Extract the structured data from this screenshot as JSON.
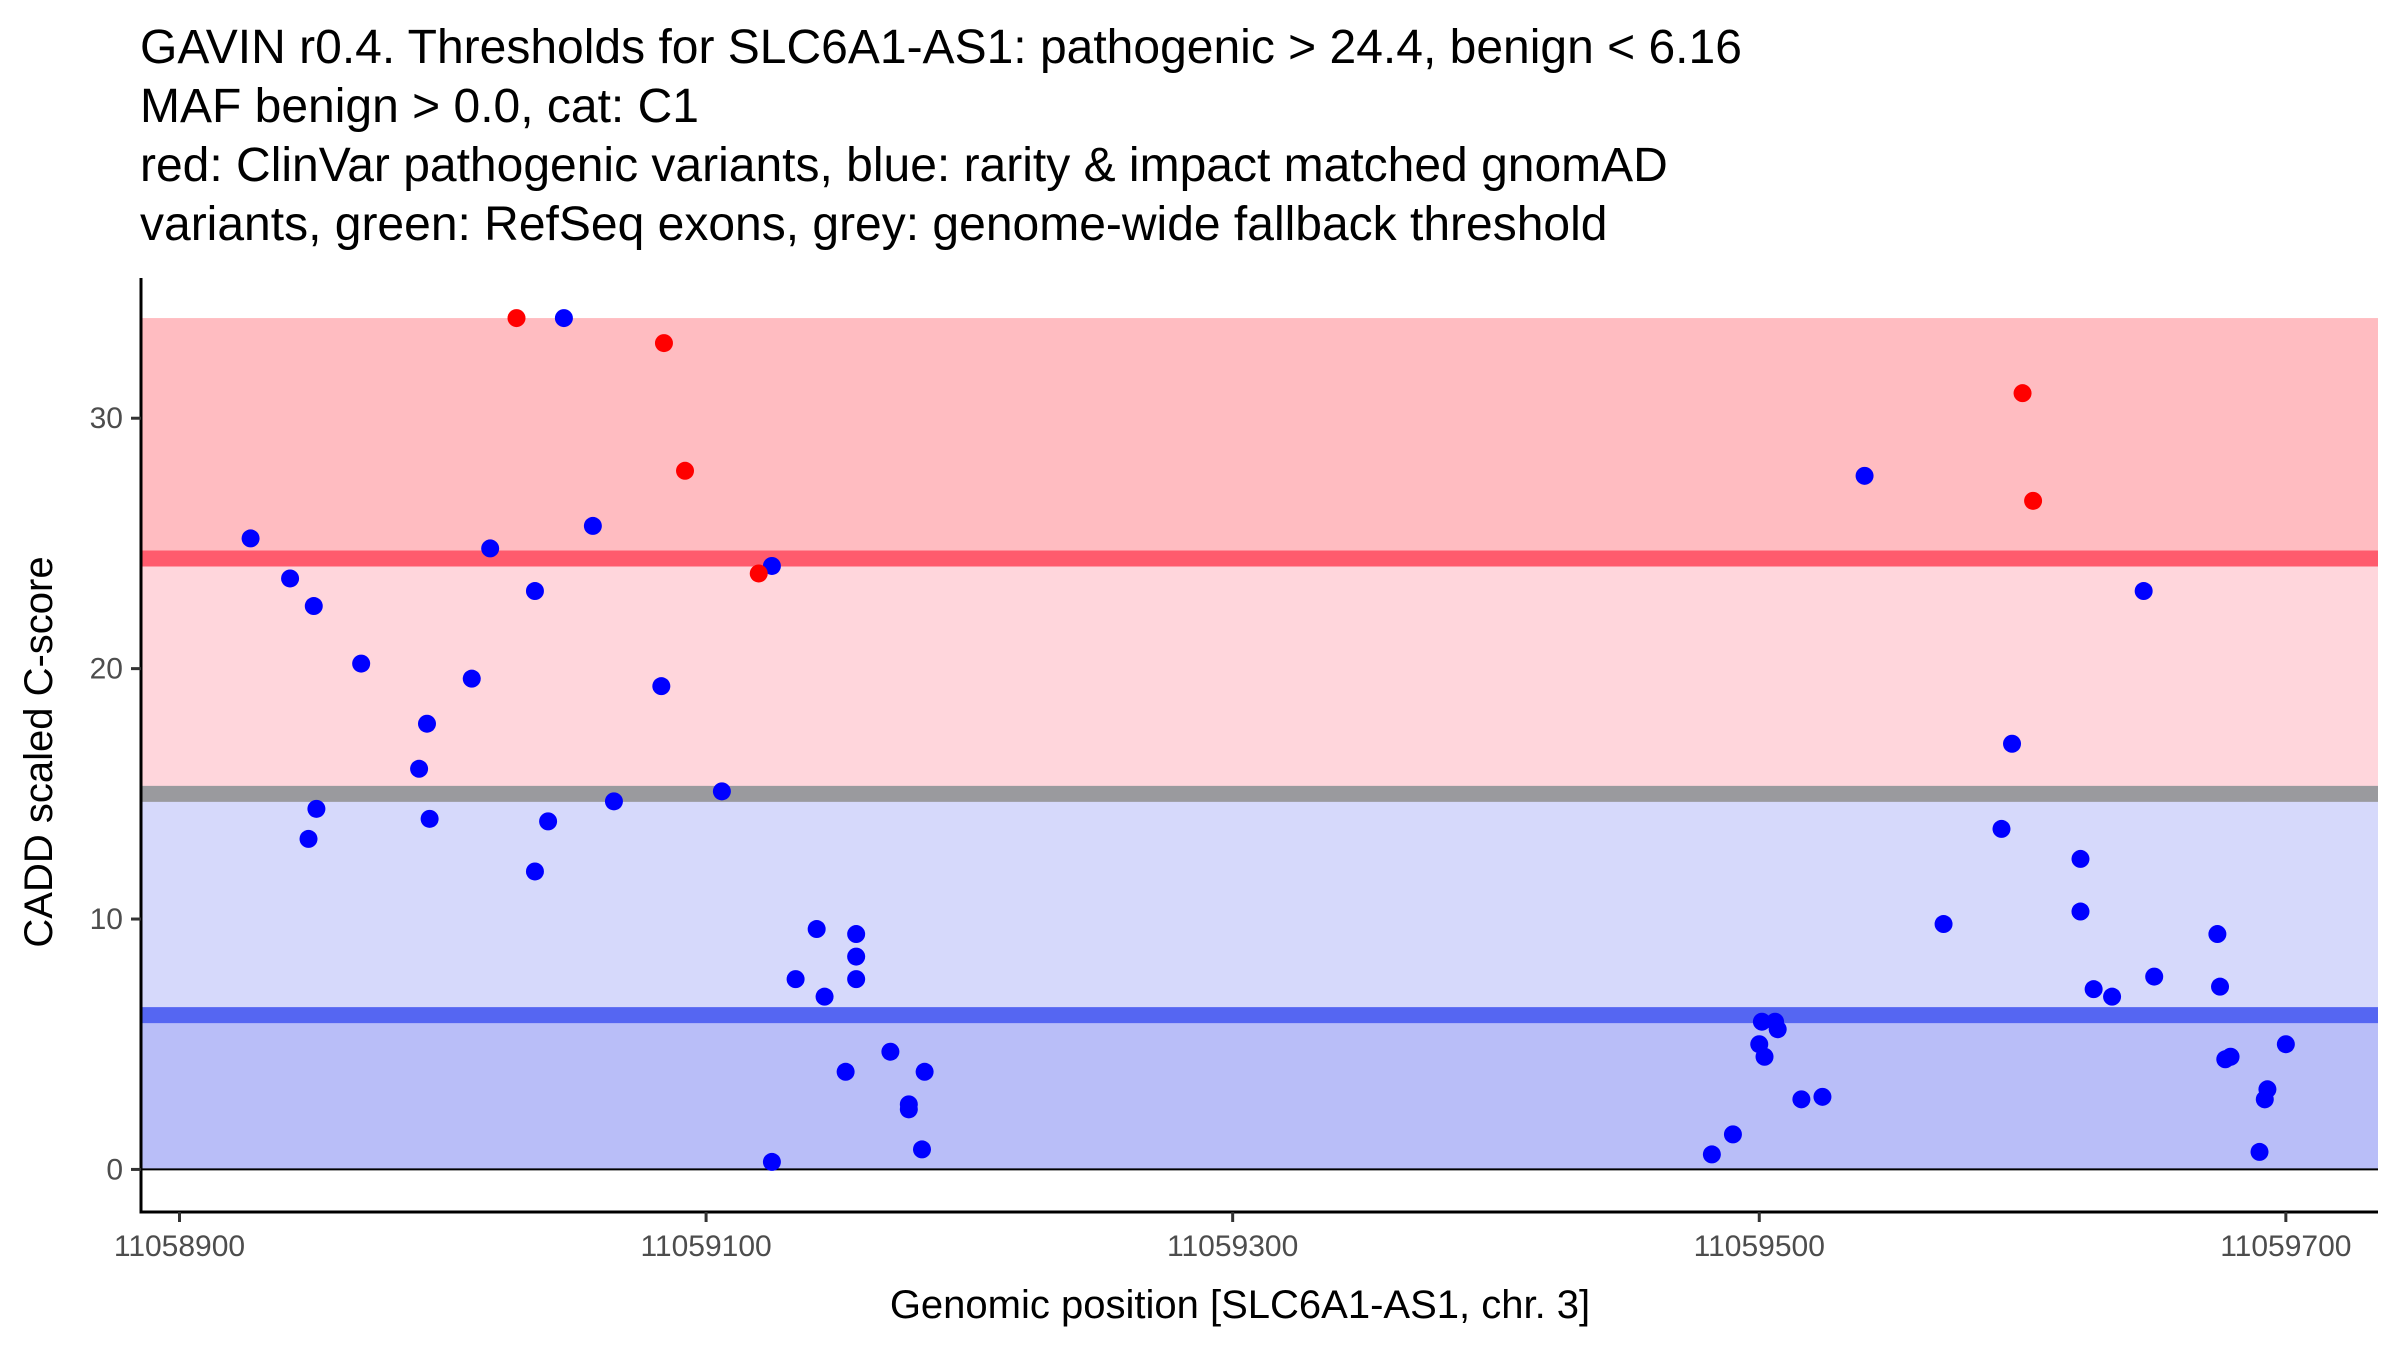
{
  "chart_data": {
    "type": "scatter",
    "title_lines": [
      "GAVIN r0.4. Thresholds for SLC6A1-AS1: pathogenic > 24.4, benign < 6.16",
      "MAF benign > 0.0, cat: C1",
      "red: ClinVar pathogenic variants, blue: rarity & impact matched gnomAD",
      "variants, green: RefSeq exons, grey: genome-wide fallback threshold"
    ],
    "xlabel": "Genomic position [SLC6A1-AS1, chr. 3]",
    "ylabel": "CADD scaled C-score",
    "xlim": [
      11058885,
      11059735
    ],
    "ylim": [
      -1.7,
      35.6
    ],
    "x_ticks": [
      11058900,
      11059100,
      11059300,
      11059500,
      11059700
    ],
    "x_tick_labels": [
      "11058900",
      "11059100",
      "11059300",
      "11059500",
      "11059700"
    ],
    "y_ticks": [
      0,
      10,
      20,
      30
    ],
    "y_tick_labels": [
      "0",
      "10",
      "20",
      "30"
    ],
    "grid": false,
    "colors": {
      "pathogenic": "#ff0000",
      "benign": "#0000ff",
      "band_pathogenic_strong": "#ffbcc1",
      "band_pathogenic_light": "#ffd6dc",
      "band_benign_light": "#d6d9fb",
      "band_benign_strong": "#b9bef8",
      "line_pathogenic": "#ff5b6d",
      "line_benign": "#5566f2",
      "line_fallback": "#9a9a9e"
    },
    "bands": [
      {
        "name": "above-pathogenic-threshold",
        "y_from": 24.4,
        "y_to": 34,
        "color_key": "band_pathogenic_strong"
      },
      {
        "name": "between-fallback-and-pathogenic",
        "y_from": 15,
        "y_to": 24.4,
        "color_key": "band_pathogenic_light"
      },
      {
        "name": "between-benign-and-fallback",
        "y_from": 6.16,
        "y_to": 15,
        "color_key": "band_benign_light"
      },
      {
        "name": "below-benign-threshold",
        "y_from": 0,
        "y_to": 6.16,
        "color_key": "band_benign_strong"
      }
    ],
    "thresholds": [
      {
        "name": "pathogenic-threshold",
        "y": 24.4,
        "color_key": "line_pathogenic"
      },
      {
        "name": "fallback-threshold",
        "y": 15,
        "color_key": "line_fallback"
      },
      {
        "name": "benign-threshold",
        "y": 6.16,
        "color_key": "line_benign"
      }
    ],
    "series": [
      {
        "name": "ClinVar pathogenic",
        "color_key": "pathogenic",
        "points": [
          [
            11059028,
            34.0
          ],
          [
            11059084,
            33.0
          ],
          [
            11059092,
            27.9
          ],
          [
            11059120,
            23.8
          ],
          [
            11059600,
            31.0
          ],
          [
            11059604,
            26.7
          ]
        ]
      },
      {
        "name": "gnomAD matched",
        "color_key": "benign",
        "points": [
          [
            11058927,
            25.2
          ],
          [
            11058942,
            23.6
          ],
          [
            11058951,
            22.5
          ],
          [
            11058949,
            13.2
          ],
          [
            11058952,
            14.4
          ],
          [
            11058969,
            20.2
          ],
          [
            11058991,
            16.0
          ],
          [
            11058994,
            17.8
          ],
          [
            11058995,
            14.0
          ],
          [
            11059011,
            19.6
          ],
          [
            11059018,
            24.8
          ],
          [
            11059035,
            23.1
          ],
          [
            11059035,
            11.9
          ],
          [
            11059040,
            13.9
          ],
          [
            11059046,
            34.0
          ],
          [
            11059057,
            25.7
          ],
          [
            11059065,
            14.7
          ],
          [
            11059083,
            19.3
          ],
          [
            11059106,
            15.1
          ],
          [
            11059125,
            24.1
          ],
          [
            11059125,
            0.3
          ],
          [
            11059134,
            7.6
          ],
          [
            11059142,
            9.6
          ],
          [
            11059145,
            6.9
          ],
          [
            11059153,
            3.9
          ],
          [
            11059157,
            9.4
          ],
          [
            11059157,
            8.5
          ],
          [
            11059157,
            7.6
          ],
          [
            11059170,
            4.7
          ],
          [
            11059177,
            2.6
          ],
          [
            11059177,
            2.4
          ],
          [
            11059182,
            0.8
          ],
          [
            11059183,
            3.9
          ],
          [
            11059482,
            0.6
          ],
          [
            11059490,
            1.4
          ],
          [
            11059500,
            5.0
          ],
          [
            11059501,
            5.9
          ],
          [
            11059502,
            4.5
          ],
          [
            11059506,
            5.9
          ],
          [
            11059507,
            5.6
          ],
          [
            11059516,
            2.8
          ],
          [
            11059524,
            2.9
          ],
          [
            11059540,
            27.7
          ],
          [
            11059570,
            9.8
          ],
          [
            11059592,
            13.6
          ],
          [
            11059596,
            17.0
          ],
          [
            11059622,
            12.4
          ],
          [
            11059622,
            10.3
          ],
          [
            11059627,
            7.2
          ],
          [
            11059634,
            6.9
          ],
          [
            11059646,
            23.1
          ],
          [
            11059650,
            7.7
          ],
          [
            11059674,
            9.4
          ],
          [
            11059675,
            7.3
          ],
          [
            11059677,
            4.4
          ],
          [
            11059679,
            4.5
          ],
          [
            11059690,
            0.7
          ],
          [
            11059692,
            2.8
          ],
          [
            11059693,
            3.2
          ],
          [
            11059700,
            5.0
          ]
        ]
      }
    ]
  }
}
